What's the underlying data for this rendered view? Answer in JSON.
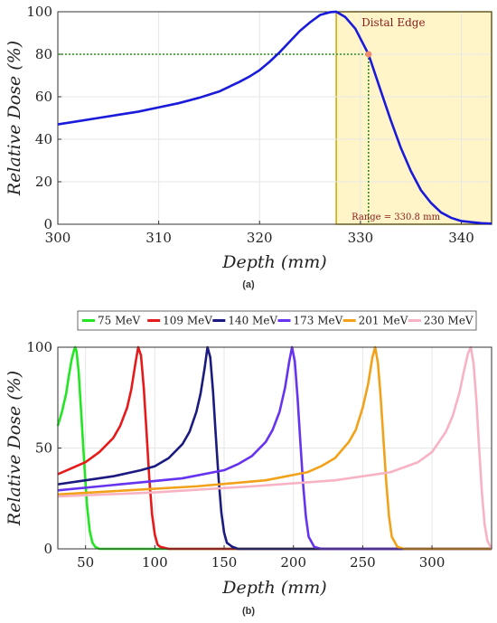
{
  "chart_data": [
    {
      "type": "line",
      "caption": "(a)",
      "xlabel": "Depth (mm)",
      "ylabel": "Relative Dose (%)",
      "xlim": [
        300,
        343
      ],
      "ylim": [
        0,
        100
      ],
      "xticks": [
        300,
        310,
        320,
        330,
        340
      ],
      "yticks": [
        0,
        20,
        40,
        60,
        80,
        100
      ],
      "grid": true,
      "line_color": "#1a1adb",
      "series": [
        {
          "x": [
            300,
            302,
            304,
            306,
            308,
            310,
            312,
            314,
            316,
            318,
            319,
            320,
            321,
            322,
            323,
            324,
            325,
            326,
            327,
            327.6,
            328.5,
            329.5,
            330.8,
            332,
            333,
            334,
            335,
            336,
            337,
            338,
            339,
            340,
            341,
            342,
            343
          ],
          "y": [
            47,
            48.5,
            50,
            51.5,
            53,
            55,
            57,
            59.5,
            62.5,
            67,
            69.5,
            72.5,
            76.5,
            81,
            86,
            91,
            95,
            98.5,
            99.8,
            100,
            97.5,
            92,
            80,
            63,
            49,
            36,
            25,
            16,
            10,
            5.5,
            3,
            1.5,
            1,
            0.5,
            0.3
          ]
        }
      ],
      "region": {
        "x_start": 327.6,
        "x_end": 343,
        "fill": "#fff5c8",
        "stroke": "#c9a800"
      },
      "reference": {
        "x": 330.8,
        "y": 80,
        "color": "#2e8b1a"
      },
      "marker": {
        "x": 330.8,
        "y": 80,
        "color": "#f08a70"
      },
      "annotations": {
        "distal_edge": "Distal Edge",
        "range": "Range = 330.8 mm"
      }
    },
    {
      "type": "line",
      "caption": "(b)",
      "xlabel": "Depth (mm)",
      "ylabel": "Relative Dose (%)",
      "xlim": [
        30,
        343
      ],
      "ylim": [
        0,
        100
      ],
      "xticks": [
        50,
        100,
        150,
        200,
        250,
        300
      ],
      "yticks": [
        0,
        50,
        100
      ],
      "grid": true,
      "legend": "top",
      "series": [
        {
          "name": "75 MeV",
          "color": "#22e622",
          "x": [
            30,
            33,
            36,
            38,
            40,
            41.5,
            42.5,
            43.5,
            45,
            47,
            49,
            51,
            53,
            55,
            57,
            60,
            70,
            343
          ],
          "y": [
            61,
            68,
            77,
            86,
            94,
            98,
            100,
            98,
            88,
            66,
            43,
            22,
            9,
            3,
            1,
            0,
            0,
            0
          ]
        },
        {
          "name": "109 MeV",
          "color": "#e61a1a",
          "x": [
            30,
            40,
            50,
            60,
            70,
            75,
            80,
            83,
            86,
            88,
            90,
            92,
            94,
            96,
            98,
            100,
            102,
            104,
            110,
            343
          ],
          "y": [
            37,
            40,
            43,
            48,
            55,
            61,
            70,
            79,
            92,
            100,
            96,
            80,
            58,
            35,
            17,
            7,
            2,
            1,
            0,
            0
          ]
        },
        {
          "name": "140 MeV",
          "color": "#1a1a80",
          "x": [
            30,
            50,
            70,
            90,
            100,
            110,
            120,
            125,
            130,
            133,
            136,
            138,
            140,
            142,
            144,
            146,
            148,
            150,
            152,
            156,
            160,
            343
          ],
          "y": [
            32,
            34,
            36,
            39,
            41,
            45,
            52,
            58,
            68,
            77,
            90,
            100,
            95,
            78,
            56,
            35,
            18,
            8,
            3,
            1,
            0,
            0
          ]
        },
        {
          "name": "173 MeV",
          "color": "#6633ee",
          "x": [
            30,
            60,
            90,
            120,
            150,
            160,
            170,
            180,
            185,
            190,
            194,
            197,
            199,
            201,
            203,
            205,
            207,
            209,
            211,
            215,
            220,
            343
          ],
          "y": [
            29,
            31,
            33,
            35,
            39,
            42,
            46,
            53,
            59,
            68,
            80,
            93,
            100,
            93,
            75,
            53,
            32,
            16,
            6,
            1,
            0,
            0
          ]
        },
        {
          "name": "201 MeV",
          "color": "#f2a21a",
          "x": [
            30,
            80,
            130,
            180,
            210,
            220,
            230,
            240,
            245,
            250,
            254,
            257,
            259,
            261,
            263,
            265,
            267,
            269,
            271,
            275,
            280,
            343
          ],
          "y": [
            27,
            29,
            31,
            34,
            38,
            41,
            45,
            53,
            59,
            70,
            82,
            95,
            100,
            92,
            75,
            54,
            33,
            16,
            6,
            1,
            0,
            0
          ]
        },
        {
          "name": "230 MeV",
          "color": "#f7b3c3",
          "x": [
            30,
            100,
            170,
            230,
            270,
            290,
            300,
            310,
            315,
            320,
            323,
            326,
            328,
            330,
            332,
            334,
            336,
            338,
            340,
            343
          ],
          "y": [
            26,
            28,
            31,
            34,
            38,
            43,
            48,
            58,
            66,
            78,
            88,
            97,
            100,
            92,
            74,
            50,
            28,
            12,
            4,
            0
          ]
        }
      ]
    }
  ]
}
